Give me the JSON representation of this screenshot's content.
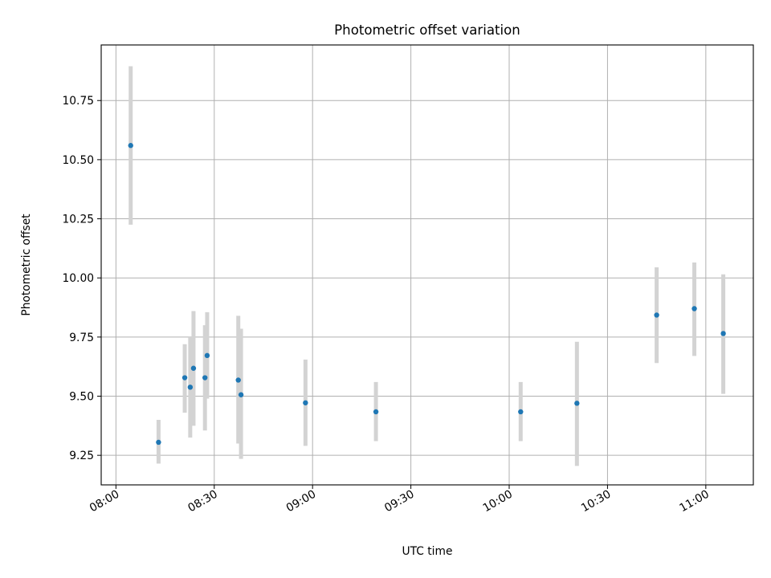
{
  "chart_data": {
    "type": "scatter",
    "title": "Photometric offset variation",
    "xlabel": "UTC time",
    "ylabel": "Photometric offset",
    "x_axis_type": "time",
    "xlim": [
      "07:55:30",
      "11:14:30"
    ],
    "ylim": [
      9.125,
      10.985
    ],
    "x_ticks": [
      "08:00",
      "08:30",
      "09:00",
      "09:30",
      "10:00",
      "10:30",
      "11:00"
    ],
    "y_ticks": [
      9.25,
      9.5,
      9.75,
      10.0,
      10.25,
      10.5,
      10.75
    ],
    "y_tick_labels": [
      "9.25",
      "9.50",
      "9.75",
      "10.00",
      "10.25",
      "10.50",
      "10.75"
    ],
    "grid": true,
    "colors": {
      "marker": "#1f77b4",
      "errorbar": "#d3d3d3",
      "grid": "#b0b0b0"
    },
    "series": [
      {
        "points": [
          {
            "x": "08:04:30",
            "y": 10.56,
            "lo": 10.225,
            "hi": 10.895
          },
          {
            "x": "08:13:00",
            "y": 9.305,
            "lo": 9.215,
            "hi": 9.4
          },
          {
            "x": "08:21:00",
            "y": 9.578,
            "lo": 9.43,
            "hi": 9.72
          },
          {
            "x": "08:22:40",
            "y": 9.538,
            "lo": 9.325,
            "hi": 9.75
          },
          {
            "x": "08:23:40",
            "y": 9.618,
            "lo": 9.375,
            "hi": 9.86
          },
          {
            "x": "08:27:10",
            "y": 9.578,
            "lo": 9.355,
            "hi": 9.8
          },
          {
            "x": "08:27:50",
            "y": 9.672,
            "lo": 9.49,
            "hi": 9.855
          },
          {
            "x": "08:37:20",
            "y": 9.568,
            "lo": 9.3,
            "hi": 9.84
          },
          {
            "x": "08:38:10",
            "y": 9.506,
            "lo": 9.235,
            "hi": 9.785
          },
          {
            "x": "08:57:50",
            "y": 9.472,
            "lo": 9.29,
            "hi": 9.655
          },
          {
            "x": "09:19:20",
            "y": 9.434,
            "lo": 9.31,
            "hi": 9.56
          },
          {
            "x": "10:03:30",
            "y": 9.434,
            "lo": 9.31,
            "hi": 9.56
          },
          {
            "x": "10:20:40",
            "y": 9.47,
            "lo": 9.205,
            "hi": 9.73
          },
          {
            "x": "10:45:00",
            "y": 9.843,
            "lo": 9.64,
            "hi": 10.045
          },
          {
            "x": "10:56:30",
            "y": 9.87,
            "lo": 9.67,
            "hi": 10.065
          },
          {
            "x": "11:05:20",
            "y": 9.765,
            "lo": 9.51,
            "hi": 10.015
          }
        ]
      }
    ]
  }
}
